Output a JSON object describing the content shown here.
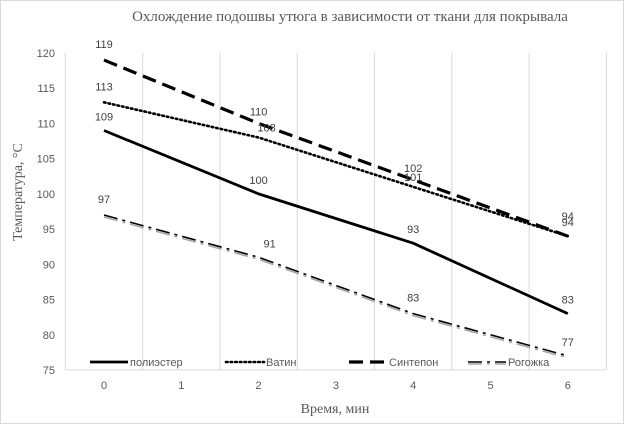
{
  "chart_data": {
    "type": "line",
    "title": "Охлождение подошвы  утюга в зависимости от ткани для покрывала",
    "xlabel": "Время, мин",
    "ylabel": "Температура, °С",
    "x": [
      0,
      2,
      4,
      6
    ],
    "x_ticks": [
      "0",
      "1",
      "2",
      "3",
      "4",
      "5",
      "6"
    ],
    "xlim": [
      0,
      6
    ],
    "ylim": [
      75,
      120
    ],
    "y_ticks": [
      "75",
      "80",
      "85",
      "90",
      "95",
      "100",
      "105",
      "110",
      "115",
      "120"
    ],
    "grid": "vertical",
    "legend_position": "bottom",
    "series": [
      {
        "name": "полиэстер",
        "style": "solid",
        "values": [
          109,
          100,
          93,
          83
        ],
        "labels": [
          "109",
          "100",
          "93",
          "83"
        ]
      },
      {
        "name": "Ватин",
        "style": "dotted",
        "values": [
          113,
          108,
          101,
          94
        ],
        "labels": [
          "113",
          "108",
          "101",
          "94"
        ]
      },
      {
        "name": "Синтепон",
        "style": "dashed",
        "values": [
          119,
          110,
          102,
          94
        ],
        "labels": [
          "119",
          "110",
          "102",
          "94"
        ]
      },
      {
        "name": "Рогожка",
        "style": "dashdot",
        "values": [
          97,
          91,
          83,
          77
        ],
        "labels": [
          "97",
          "91",
          "83",
          "77"
        ]
      }
    ]
  }
}
